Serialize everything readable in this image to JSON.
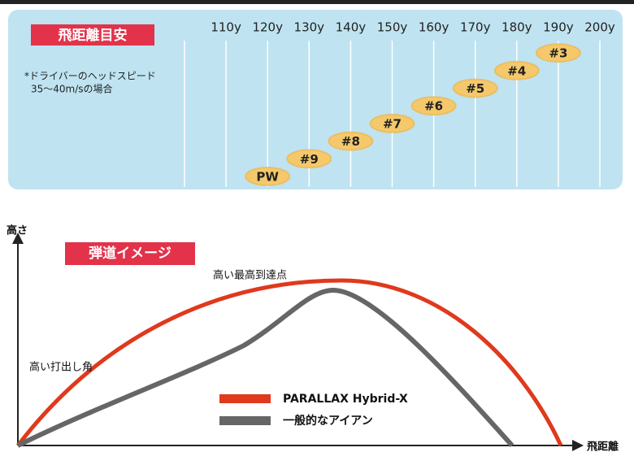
{
  "chart_data": {
    "type": "dot",
    "title": "飛距離目安",
    "note": [
      "*ドライバーのヘッドスピード",
      "35～40m/sの場合"
    ],
    "categories": [
      "PW",
      "#9",
      "#8",
      "#7",
      "#6",
      "#5",
      "#4",
      "#3"
    ],
    "values": [
      120,
      130,
      140,
      150,
      160,
      170,
      180,
      190
    ],
    "color": "#f5c96b",
    "xlim": [
      100,
      200
    ],
    "xticks": [
      {
        "value": 110,
        "label": "110y"
      },
      {
        "value": 120,
        "label": "120y"
      },
      {
        "value": 130,
        "label": "130y"
      },
      {
        "value": 140,
        "label": "140y"
      },
      {
        "value": 150,
        "label": "150y"
      },
      {
        "value": 160,
        "label": "160y"
      },
      {
        "value": 170,
        "label": "170y"
      },
      {
        "value": 180,
        "label": "180y"
      },
      {
        "value": 190,
        "label": "190y"
      },
      {
        "value": 200,
        "label": "200y"
      }
    ],
    "grid": true
  },
  "diagram": {
    "title": "弾道イメージ",
    "y_label": "高さ",
    "x_label": "飛距離",
    "annotations": [
      "高い最高到達点",
      "高い打出し角"
    ],
    "legend": [
      {
        "name": "PARALLAX Hybrid-X",
        "color": "#e0391c"
      },
      {
        "name": "一般的なアイアン",
        "color": "#666666"
      }
    ]
  }
}
